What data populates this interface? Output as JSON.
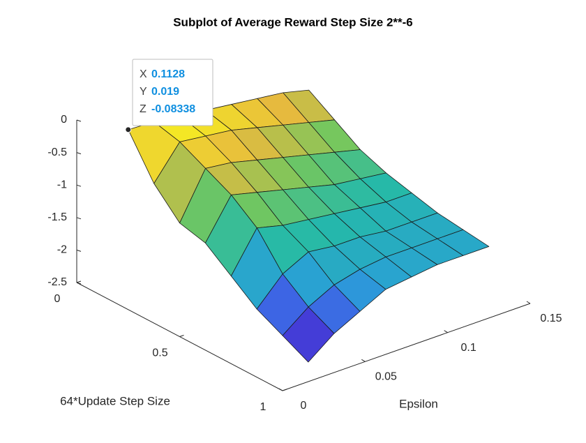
{
  "chart_data": {
    "type": "surface",
    "title": "Subplot of Average Reward Step Size 2**-6",
    "xlabel": "Epsilon",
    "ylabel": "64*Update Step Size",
    "x": [
      0.0156,
      0.03125,
      0.046875,
      0.0625,
      0.078125,
      0.09375,
      0.109375,
      0.125
    ],
    "y": [
      0.125,
      0.25,
      0.375,
      0.5,
      0.625,
      0.75,
      0.875,
      1
    ],
    "z": [
      [
        -0.08,
        -0.1,
        -0.15,
        -0.2,
        -0.25,
        -0.3,
        -0.35,
        -0.45
      ],
      [
        -0.7,
        -0.2,
        -0.25,
        -0.3,
        -0.4,
        -0.5,
        -0.6,
        -0.7
      ],
      [
        -1.1,
        -0.4,
        -0.45,
        -0.55,
        -0.65,
        -0.75,
        -0.85,
        -0.95
      ],
      [
        -1.2,
        -0.6,
        -0.7,
        -0.8,
        -0.9,
        -1.0,
        -1.05,
        -1.1
      ],
      [
        -1.5,
        -0.9,
        -1.0,
        -1.05,
        -1.1,
        -1.15,
        -1.2,
        -1.2
      ],
      [
        -1.8,
        -1.4,
        -1.2,
        -1.25,
        -1.25,
        -1.3,
        -1.3,
        -1.3
      ],
      [
        -2.0,
        -1.7,
        -1.5,
        -1.4,
        -1.35,
        -1.35,
        -1.35,
        -1.35
      ],
      [
        -2.2,
        -1.9,
        -1.7,
        -1.5,
        -1.45,
        -1.4,
        -1.4,
        -1.4
      ]
    ],
    "xlim": [
      0,
      0.15
    ],
    "xticks": [
      0,
      0.05,
      0.1,
      0.15
    ],
    "ylim": [
      0,
      1
    ],
    "yticks": [
      0,
      0.5,
      1
    ],
    "zlim": [
      -2.5,
      0
    ],
    "zticks": [
      0,
      -0.5,
      -1,
      -1.5,
      -2,
      -2.5
    ],
    "colormap": [
      "#3e26a8",
      "#4747eb",
      "#2a9fd8",
      "#25b9a9",
      "#72c75f",
      "#e7ba3e",
      "#f9f81c"
    ],
    "datatip": [
      {
        "label": "X",
        "value": 0.1128
      },
      {
        "label": "Y",
        "value": 0.019
      },
      {
        "label": "Z",
        "value": -0.08338
      }
    ]
  }
}
